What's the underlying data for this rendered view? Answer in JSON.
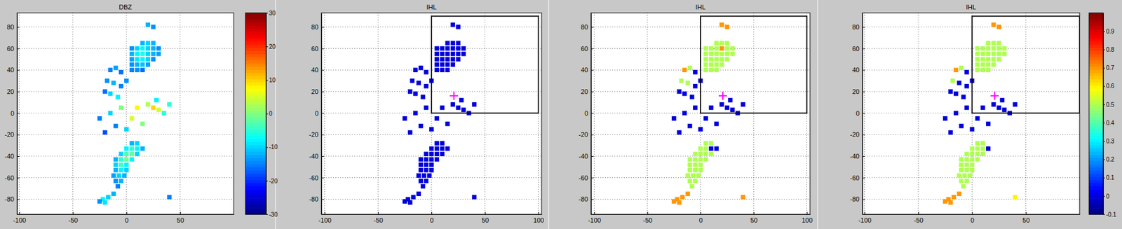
{
  "chart_data": [
    {
      "type": "scatter",
      "title": "DBZ",
      "marker": "square",
      "color": "jet",
      "grid": true,
      "xlim": [
        -102,
        100
      ],
      "ylim": [
        -94,
        93
      ],
      "xticks": [
        -100,
        -50,
        0,
        50
      ],
      "yticks": [
        -80,
        -60,
        -40,
        -20,
        0,
        20,
        40,
        60,
        80
      ],
      "clim": [
        -30,
        30
      ],
      "colorbar_ticks": [
        -30,
        -20,
        -10,
        0,
        10,
        20,
        30
      ],
      "x": [
        15,
        20,
        25,
        5,
        10,
        15,
        20,
        25,
        30,
        5,
        10,
        15,
        20,
        25,
        30,
        5,
        10,
        15,
        20,
        25,
        5,
        10,
        15,
        20,
        5,
        10,
        15,
        -15,
        -10,
        -5,
        -18,
        -12,
        -5,
        -15,
        -8,
        0,
        -20,
        20,
        25,
        -25,
        -15,
        -5,
        5,
        10,
        20,
        25,
        30,
        35,
        15,
        0,
        -10,
        -20,
        40,
        28,
        5,
        10,
        0,
        5,
        10,
        15,
        -5,
        0,
        5,
        10,
        -10,
        -5,
        0,
        5,
        -10,
        -5,
        0,
        -10,
        -5,
        0,
        -12,
        -7,
        -2,
        -10,
        -5,
        -8,
        -22,
        -17,
        -12,
        -20,
        -25,
        40
      ],
      "y": [
        65,
        65,
        65,
        60,
        60,
        60,
        60,
        60,
        60,
        55,
        55,
        55,
        55,
        55,
        55,
        50,
        50,
        50,
        50,
        50,
        45,
        45,
        45,
        45,
        40,
        40,
        40,
        40,
        42,
        38,
        30,
        28,
        25,
        18,
        15,
        30,
        20,
        82,
        80,
        -5,
        0,
        5,
        -5,
        5,
        8,
        5,
        3,
        0,
        -10,
        -15,
        -12,
        -18,
        8,
        12,
        -28,
        -28,
        -33,
        -33,
        -33,
        -33,
        -38,
        -38,
        -38,
        -38,
        -43,
        -43,
        -43,
        -43,
        -48,
        -48,
        -48,
        -53,
        -53,
        -53,
        -58,
        -58,
        -58,
        -63,
        -63,
        -68,
        -80,
        -78,
        -75,
        -83,
        -82,
        -78
      ],
      "values": [
        -12,
        -10,
        -12,
        -14,
        -10,
        -8,
        -10,
        -12,
        -14,
        -12,
        -8,
        -6,
        -10,
        -12,
        -13,
        -13,
        -9,
        -8,
        -10,
        -14,
        -14,
        -12,
        -11,
        -13,
        -15,
        -14,
        -16,
        -15,
        -13,
        -16,
        -14,
        -12,
        -15,
        -10,
        -8,
        -14,
        -16,
        -12,
        -14,
        -15,
        -10,
        0,
        5,
        8,
        3,
        10,
        5,
        -5,
        0,
        -10,
        -15,
        -18,
        -5,
        -8,
        -12,
        -10,
        -8,
        -5,
        -8,
        -12,
        -10,
        -3,
        -2,
        -10,
        -12,
        -5,
        -1,
        -8,
        -10,
        -4,
        -8,
        -12,
        -8,
        -10,
        -13,
        -10,
        -12,
        -14,
        -12,
        -15,
        -8,
        -10,
        -12,
        -9,
        -14,
        -15
      ]
    },
    {
      "type": "scatter",
      "title": "IHL",
      "marker": "square",
      "color": "jet",
      "grid": true,
      "xlim": [
        -103,
        103
      ],
      "ylim": [
        -94,
        93
      ],
      "xticks": [
        -100,
        -50,
        0,
        50,
        100
      ],
      "yticks": [
        -80,
        -60,
        -40,
        -20,
        0,
        20,
        40,
        60,
        80
      ],
      "clim": [
        -0.1,
        1
      ],
      "region": {
        "x": [
          0,
          100
        ],
        "y": [
          0,
          90
        ]
      },
      "marker_point": {
        "x": 21,
        "y": 16
      },
      "x": [
        15,
        20,
        25,
        5,
        10,
        15,
        20,
        25,
        30,
        5,
        10,
        15,
        20,
        25,
        30,
        5,
        10,
        15,
        20,
        25,
        5,
        10,
        15,
        20,
        5,
        10,
        15,
        -15,
        -10,
        -5,
        -18,
        -12,
        -5,
        -15,
        -8,
        0,
        -20,
        20,
        25,
        -25,
        -15,
        -5,
        5,
        10,
        20,
        25,
        30,
        35,
        15,
        0,
        -10,
        -20,
        40,
        28,
        5,
        10,
        0,
        5,
        10,
        15,
        -5,
        0,
        5,
        10,
        -10,
        -5,
        0,
        5,
        -10,
        -5,
        0,
        -10,
        -5,
        0,
        -12,
        -7,
        -2,
        -10,
        -5,
        -8,
        -22,
        -17,
        -12,
        -20,
        -25,
        40
      ],
      "y": [
        65,
        65,
        65,
        60,
        60,
        60,
        60,
        60,
        60,
        55,
        55,
        55,
        55,
        55,
        55,
        50,
        50,
        50,
        50,
        50,
        45,
        45,
        45,
        45,
        40,
        40,
        40,
        40,
        42,
        38,
        30,
        28,
        25,
        18,
        15,
        30,
        20,
        82,
        80,
        -5,
        0,
        5,
        -5,
        5,
        8,
        5,
        3,
        0,
        -10,
        -15,
        -12,
        -18,
        8,
        12,
        -28,
        -28,
        -33,
        -33,
        -33,
        -33,
        -38,
        -38,
        -38,
        -38,
        -43,
        -43,
        -43,
        -43,
        -48,
        -48,
        -48,
        -53,
        -53,
        -53,
        -58,
        -58,
        -58,
        -63,
        -63,
        -68,
        -80,
        -78,
        -75,
        -83,
        -82,
        -78
      ],
      "values": [
        0,
        0,
        0,
        0,
        0,
        0,
        0,
        0,
        0,
        0,
        0,
        0,
        0,
        0,
        0,
        0,
        0,
        0,
        0,
        0,
        0,
        0,
        0,
        0,
        0,
        0,
        0,
        0,
        0,
        0,
        0,
        0,
        0,
        0,
        0,
        0,
        0,
        0,
        0,
        0,
        0,
        0,
        0,
        0,
        0,
        0,
        0,
        0,
        0,
        0,
        0,
        0,
        0,
        0,
        0,
        0,
        0,
        0,
        0,
        0,
        0,
        0,
        0,
        0,
        0,
        0,
        0,
        0,
        0,
        0,
        0,
        0,
        0,
        0,
        0,
        0,
        0,
        0,
        0,
        0,
        0,
        0,
        0,
        0,
        0,
        0
      ]
    },
    {
      "type": "scatter",
      "title": "IHL",
      "marker": "square",
      "color": "jet",
      "grid": true,
      "xlim": [
        -103,
        103
      ],
      "ylim": [
        -94,
        93
      ],
      "xticks": [
        -100,
        -50,
        0,
        50,
        100
      ],
      "yticks": [
        -80,
        -60,
        -40,
        -20,
        0,
        20,
        40,
        60,
        80
      ],
      "clim": [
        -0.1,
        1
      ],
      "region": {
        "x": [
          0,
          100
        ],
        "y": [
          0,
          90
        ]
      },
      "marker_point": {
        "x": 21,
        "y": 16
      },
      "x": [
        15,
        20,
        25,
        5,
        10,
        15,
        20,
        25,
        30,
        5,
        10,
        15,
        20,
        25,
        30,
        5,
        10,
        15,
        20,
        25,
        5,
        10,
        15,
        20,
        5,
        10,
        15,
        -15,
        -10,
        -5,
        -18,
        -12,
        -5,
        -15,
        -8,
        0,
        -20,
        20,
        25,
        -25,
        -15,
        -5,
        5,
        10,
        20,
        25,
        30,
        35,
        15,
        0,
        -10,
        -20,
        40,
        28,
        5,
        10,
        0,
        5,
        10,
        15,
        -5,
        0,
        5,
        10,
        -10,
        -5,
        0,
        5,
        -10,
        -5,
        0,
        -10,
        -5,
        0,
        -12,
        -7,
        -2,
        -10,
        -5,
        -8,
        -22,
        -17,
        -12,
        -20,
        -25,
        40
      ],
      "y": [
        65,
        65,
        65,
        60,
        60,
        60,
        60,
        60,
        60,
        55,
        55,
        55,
        55,
        55,
        55,
        50,
        50,
        50,
        50,
        50,
        45,
        45,
        45,
        45,
        40,
        40,
        40,
        40,
        42,
        38,
        30,
        28,
        25,
        18,
        15,
        30,
        20,
        82,
        80,
        -5,
        0,
        5,
        -5,
        5,
        8,
        5,
        3,
        0,
        -10,
        -15,
        -12,
        -18,
        8,
        12,
        -28,
        -28,
        -33,
        -33,
        -33,
        -33,
        -38,
        -38,
        -38,
        -38,
        -43,
        -43,
        -43,
        -43,
        -48,
        -48,
        -48,
        -53,
        -53,
        -53,
        -58,
        -58,
        -58,
        -63,
        -63,
        -68,
        -80,
        -78,
        -75,
        -83,
        -82,
        -78
      ],
      "values": [
        0.5,
        0.5,
        0.5,
        0.5,
        0.5,
        0.5,
        0.7,
        0.5,
        0.5,
        0.5,
        0.5,
        0.5,
        0.5,
        0.5,
        0.5,
        0.5,
        0.5,
        0.5,
        0.5,
        0.5,
        0.5,
        0.5,
        0.5,
        0.5,
        0.5,
        0.5,
        0.5,
        0.7,
        0.5,
        0,
        0.5,
        0.5,
        0,
        0,
        0,
        0,
        0,
        0.7,
        0.7,
        0,
        0,
        0,
        0,
        0,
        0,
        0,
        0,
        0,
        0,
        0,
        0,
        0,
        0,
        0,
        0.5,
        0.5,
        0.5,
        0.5,
        0,
        0,
        0.5,
        0.5,
        0.5,
        0.5,
        0.5,
        0.5,
        0.5,
        0.5,
        0.5,
        0.5,
        0.5,
        0.5,
        0.5,
        0.5,
        0.5,
        0.5,
        0.5,
        0.5,
        0.5,
        0.5,
        0.7,
        0.7,
        0.7,
        0.7,
        0.7,
        0.7
      ]
    },
    {
      "type": "scatter",
      "title": "IHL",
      "marker": "square",
      "color": "jet",
      "grid": true,
      "xlim": [
        -102,
        100
      ],
      "ylim": [
        -94,
        93
      ],
      "xticks": [
        -100,
        -50,
        0,
        50
      ],
      "yticks": [
        -80,
        -60,
        -40,
        -20,
        0,
        20,
        40,
        60,
        80
      ],
      "clim": [
        -0.1,
        1
      ],
      "colorbar_ticks": [
        -0.1,
        0,
        0.1,
        0.2,
        0.3,
        0.4,
        0.5,
        0.6,
        0.7,
        0.8,
        0.9
      ],
      "region": {
        "x": [
          0,
          100
        ],
        "y": [
          0,
          90
        ]
      },
      "marker_point": {
        "x": 21,
        "y": 16
      },
      "x": [
        15,
        20,
        25,
        5,
        10,
        15,
        20,
        25,
        30,
        5,
        10,
        15,
        20,
        25,
        30,
        5,
        10,
        15,
        20,
        25,
        5,
        10,
        15,
        20,
        5,
        10,
        15,
        -15,
        -10,
        -5,
        -18,
        -12,
        -5,
        -15,
        -8,
        0,
        -20,
        20,
        25,
        -25,
        -15,
        -5,
        5,
        10,
        20,
        25,
        30,
        35,
        15,
        0,
        -10,
        -20,
        40,
        28,
        5,
        10,
        0,
        5,
        10,
        15,
        -5,
        0,
        5,
        10,
        -10,
        -5,
        0,
        5,
        -10,
        -5,
        0,
        -10,
        -5,
        0,
        -12,
        -7,
        -2,
        -10,
        -5,
        -8,
        -22,
        -17,
        -12,
        -20,
        -25,
        40
      ],
      "y": [
        65,
        65,
        65,
        60,
        60,
        60,
        60,
        60,
        60,
        55,
        55,
        55,
        55,
        55,
        55,
        50,
        50,
        50,
        50,
        50,
        45,
        45,
        45,
        45,
        40,
        40,
        40,
        40,
        42,
        38,
        30,
        28,
        25,
        18,
        15,
        30,
        20,
        82,
        80,
        -5,
        0,
        5,
        -5,
        5,
        8,
        5,
        3,
        0,
        -10,
        -15,
        -12,
        -18,
        8,
        12,
        -28,
        -28,
        -33,
        -33,
        -33,
        -33,
        -38,
        -38,
        -38,
        -38,
        -43,
        -43,
        -43,
        -43,
        -48,
        -48,
        -48,
        -53,
        -53,
        -53,
        -58,
        -58,
        -58,
        -63,
        -63,
        -68,
        -80,
        -78,
        -75,
        -83,
        -82,
        -78
      ],
      "values": [
        0.5,
        0.5,
        0.5,
        0.5,
        0.5,
        0.5,
        0.5,
        0.5,
        0.5,
        0.5,
        0.5,
        0.5,
        0.5,
        0.5,
        0.5,
        0.5,
        0.5,
        0.5,
        0.5,
        0.5,
        0.5,
        0.5,
        0.5,
        0.5,
        0.5,
        0.5,
        0.5,
        0.7,
        0.5,
        0,
        0.5,
        0,
        0,
        0,
        0,
        0,
        0,
        0.7,
        0.7,
        0,
        0,
        0,
        0,
        0,
        0,
        0,
        0,
        0,
        0,
        0,
        0,
        0,
        0,
        0,
        0.5,
        0.5,
        0.5,
        0.5,
        0.5,
        0,
        0.5,
        0.5,
        0.5,
        0.5,
        0.5,
        0.5,
        0.5,
        0.5,
        0.5,
        0.5,
        0.5,
        0.5,
        0.5,
        0.5,
        0.5,
        0.5,
        0.5,
        0.5,
        0.5,
        0.5,
        0.7,
        0.7,
        0.7,
        0.7,
        0.7,
        0.6
      ]
    }
  ]
}
